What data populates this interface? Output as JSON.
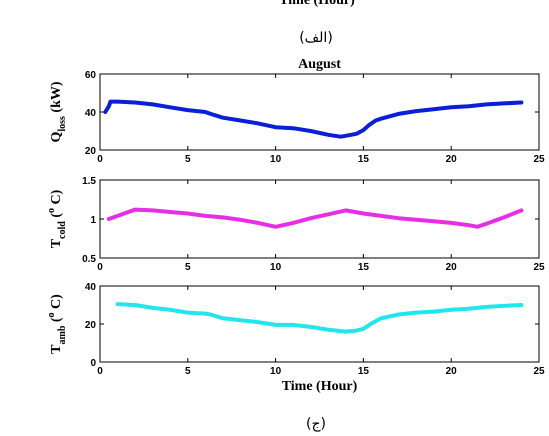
{
  "top_fragment": "Time (Hour)",
  "caption_top": "(الف)",
  "caption_bottom": "(ج)",
  "colors": {
    "q_loss": "#0a1fd8",
    "t_cold": "#e62ee6",
    "t_amb": "#22e6ec",
    "axis": "#000000"
  },
  "chart_data": [
    {
      "type": "line",
      "title": "August",
      "ylabel": "Q_loss (kW)",
      "ylabel_main": "Q",
      "ylabel_sub": "loss",
      "ylabel_tail": " (kW)",
      "xlabel": "",
      "xlim": [
        0,
        25
      ],
      "ylim": [
        20,
        60
      ],
      "xticks": [
        0,
        5,
        10,
        15,
        20,
        25
      ],
      "yticks": [
        20,
        40,
        60
      ],
      "series": [
        {
          "color": "#0a1fd8",
          "x": [
            0.3,
            0.5,
            0.6,
            1,
            2,
            3,
            4,
            5,
            6,
            6.3,
            7,
            8,
            9,
            10,
            11,
            12,
            13,
            13.7,
            14,
            14.6,
            15,
            15.3,
            15.7,
            16,
            17,
            18,
            19,
            20,
            21,
            22,
            23,
            24
          ],
          "y": [
            40,
            43,
            45.5,
            45.5,
            45,
            44,
            42.5,
            41,
            40,
            39,
            37,
            35.5,
            34,
            32,
            31.5,
            30,
            28,
            27,
            27.5,
            28.5,
            30.5,
            33,
            35.5,
            36.5,
            39,
            40.5,
            41.5,
            42.5,
            43,
            44,
            44.5,
            45
          ]
        }
      ]
    },
    {
      "type": "line",
      "title": "",
      "ylabel": "T_cold (°C)",
      "ylabel_main": "T",
      "ylabel_sub": "cold",
      "ylabel_tail": " (",
      "ylabel_sup": "o",
      "ylabel_end": " C)",
      "xlabel": "",
      "xlim": [
        0,
        25
      ],
      "ylim": [
        0.5,
        1.5
      ],
      "xticks": [
        0,
        5,
        10,
        15,
        20,
        25
      ],
      "yticks": [
        0.5,
        1,
        1.5
      ],
      "series": [
        {
          "color": "#e62ee6",
          "x": [
            0.5,
            1,
            1.5,
            2,
            3,
            4,
            5,
            6,
            7,
            8,
            9,
            10,
            11,
            12,
            13,
            14,
            15,
            16,
            17,
            18,
            19,
            20,
            21,
            21.5,
            22,
            23,
            24
          ],
          "y": [
            1.0,
            1.04,
            1.08,
            1.12,
            1.11,
            1.09,
            1.07,
            1.04,
            1.02,
            0.99,
            0.95,
            0.9,
            0.95,
            1.01,
            1.06,
            1.11,
            1.07,
            1.04,
            1.01,
            0.99,
            0.97,
            0.95,
            0.92,
            0.9,
            0.94,
            1.02,
            1.11
          ]
        }
      ]
    },
    {
      "type": "line",
      "title": "",
      "ylabel": "T_amb (°C)",
      "ylabel_main": "T",
      "ylabel_sub": "amb",
      "ylabel_tail": " (",
      "ylabel_sup": "o",
      "ylabel_end": " C)",
      "xlabel": "Time (Hour)",
      "xlim": [
        0,
        25
      ],
      "ylim": [
        0,
        40
      ],
      "xticks": [
        0,
        5,
        10,
        15,
        20,
        25
      ],
      "yticks": [
        0,
        20,
        40
      ],
      "series": [
        {
          "color": "#22e6ec",
          "x": [
            1,
            2,
            3,
            4,
            5,
            6,
            6.3,
            7,
            8,
            9,
            10,
            11,
            12,
            13,
            14,
            14.6,
            15,
            15.5,
            16,
            17,
            18,
            19,
            20,
            21,
            22,
            23,
            24
          ],
          "y": [
            30.5,
            30,
            28.5,
            27.5,
            26,
            25.5,
            25,
            23,
            22,
            21,
            19.5,
            19.5,
            18.5,
            17,
            16,
            16.5,
            17.5,
            20.5,
            23,
            25,
            26,
            26.5,
            27.5,
            28,
            29,
            29.5,
            30
          ]
        }
      ]
    }
  ]
}
